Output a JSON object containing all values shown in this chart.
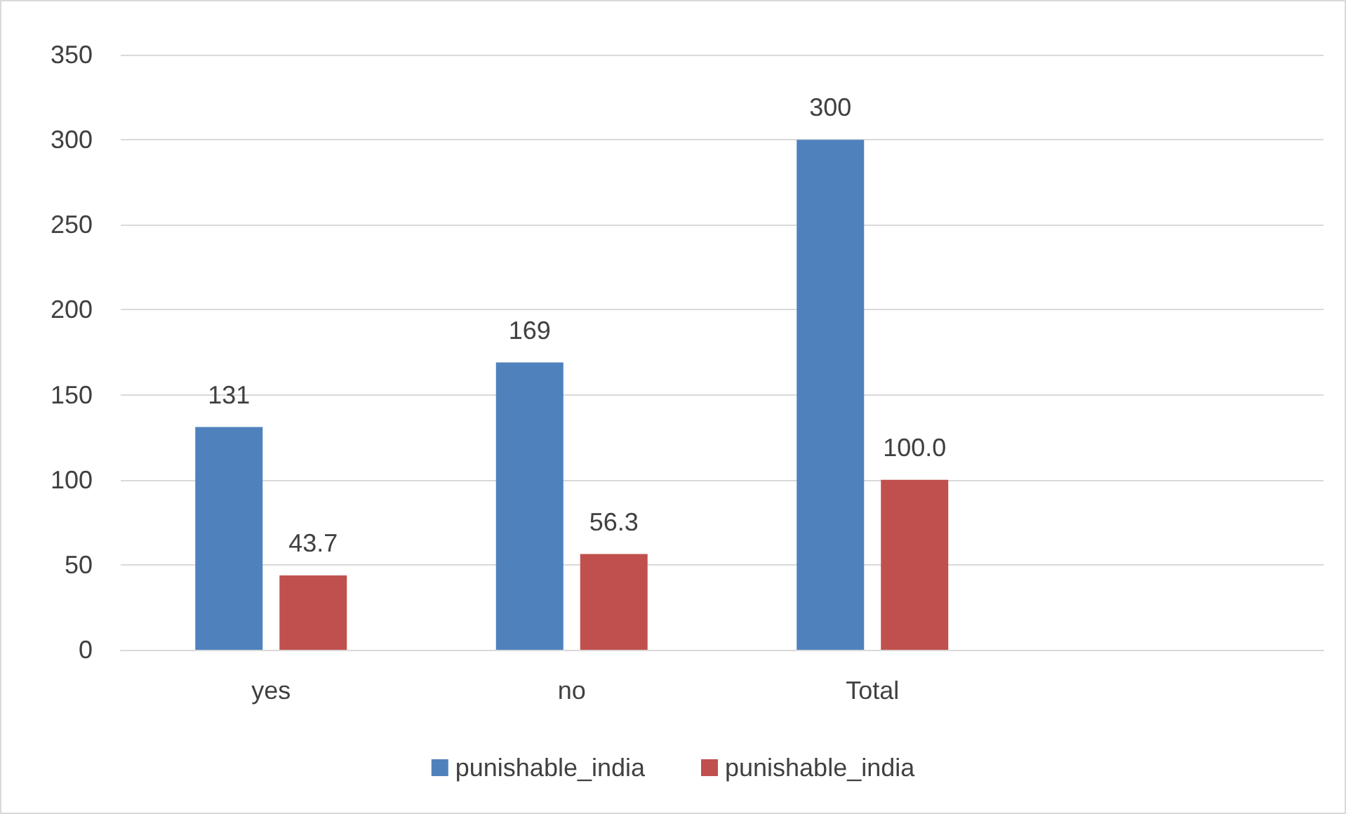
{
  "chart_data": {
    "type": "bar",
    "categories": [
      "yes",
      "no",
      "Total",
      null
    ],
    "series": [
      {
        "name": "punishable_india",
        "color": "#4f81bd",
        "values": [
          131,
          169,
          300,
          null
        ],
        "value_labels": [
          "131",
          "169",
          "300",
          null
        ]
      },
      {
        "name": "punishable_india",
        "color": "#c0504d",
        "values": [
          43.7,
          56.3,
          100.0,
          null
        ],
        "value_labels": [
          "43.7",
          "56.3",
          "100.0",
          null
        ]
      }
    ],
    "ylim": [
      0,
      350
    ],
    "yticks": [
      0,
      50,
      100,
      150,
      200,
      250,
      300,
      350
    ],
    "grid": "y",
    "legend": "bottom"
  }
}
